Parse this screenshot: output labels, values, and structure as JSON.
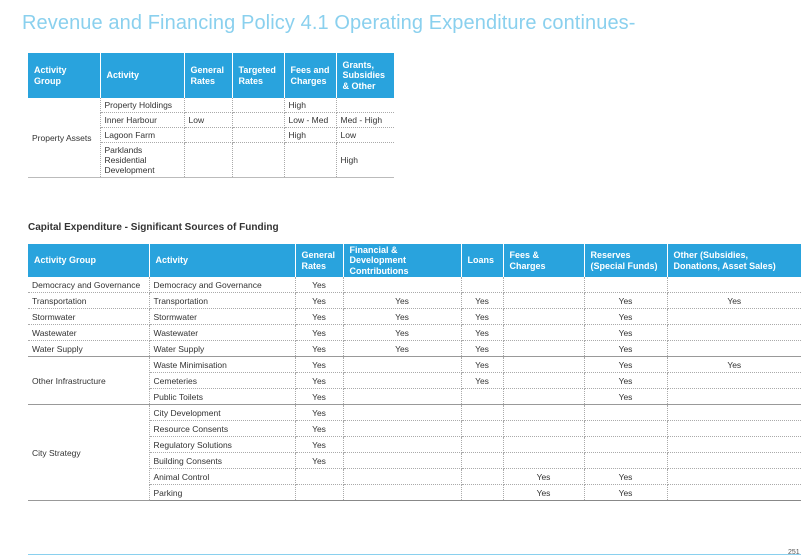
{
  "header": {
    "title": "Revenue and Financing Policy  4.1 Operating Expenditure continues-"
  },
  "operating_table": {
    "headers": [
      "Activity Group",
      "Activity",
      "General Rates",
      "Targeted Rates",
      "Fees and Charges",
      "Grants, Subsidies & Other"
    ],
    "group": "Property Assets",
    "rows": [
      {
        "activity": "Property Holdings",
        "general": "",
        "targeted": "",
        "fees": "High",
        "grants": ""
      },
      {
        "activity": "Inner Harbour",
        "general": "Low",
        "targeted": "",
        "fees": "Low - Med",
        "grants": "Med - High"
      },
      {
        "activity": "Lagoon Farm",
        "general": "",
        "targeted": "",
        "fees": "High",
        "grants": "Low"
      },
      {
        "activity": "Parklands Residential Development",
        "general": "",
        "targeted": "",
        "fees": "",
        "grants": "High"
      }
    ]
  },
  "capital_section": {
    "title": "Capital Expenditure - Significant Sources of Funding"
  },
  "capital_table": {
    "headers": [
      "Activity Group",
      "Activity",
      "General Rates",
      "Financial & Development Contributions",
      "Loans",
      "Fees & Charges",
      "Reserves (Special Funds)",
      "Other (Subsidies, Donations, Asset Sales)"
    ],
    "single_rows": [
      {
        "group": "Democracy and Governance",
        "activity": "Democracy and Governance",
        "cells": [
          "Yes",
          "",
          "",
          "",
          "",
          ""
        ]
      },
      {
        "group": "Transportation",
        "activity": "Transportation",
        "cells": [
          "Yes",
          "Yes",
          "Yes",
          "",
          "Yes",
          "Yes"
        ]
      },
      {
        "group": "Stormwater",
        "activity": "Stormwater",
        "cells": [
          "Yes",
          "Yes",
          "Yes",
          "",
          "Yes",
          ""
        ]
      },
      {
        "group": "Wastewater",
        "activity": "Wastewater",
        "cells": [
          "Yes",
          "Yes",
          "Yes",
          "",
          "Yes",
          ""
        ]
      },
      {
        "group": "Water Supply",
        "activity": "Water Supply",
        "cells": [
          "Yes",
          "Yes",
          "Yes",
          "",
          "Yes",
          ""
        ]
      }
    ],
    "other_infrastructure": {
      "group": "Other Infrastructure",
      "rows": [
        {
          "activity": "Waste Minimisation",
          "cells": [
            "Yes",
            "",
            "Yes",
            "",
            "Yes",
            "Yes"
          ]
        },
        {
          "activity": "Cemeteries",
          "cells": [
            "Yes",
            "",
            "Yes",
            "",
            "Yes",
            ""
          ]
        },
        {
          "activity": "Public Toilets",
          "cells": [
            "Yes",
            "",
            "",
            "",
            "Yes",
            ""
          ]
        }
      ]
    },
    "city_strategy": {
      "group": "City Strategy",
      "rows": [
        {
          "activity": "City Development",
          "cells": [
            "Yes",
            "",
            "",
            "",
            "",
            ""
          ]
        },
        {
          "activity": "Resource Consents",
          "cells": [
            "Yes",
            "",
            "",
            "",
            "",
            ""
          ]
        },
        {
          "activity": "Regulatory Solutions",
          "cells": [
            "Yes",
            "",
            "",
            "",
            "",
            ""
          ]
        },
        {
          "activity": "Building Consents",
          "cells": [
            "Yes",
            "",
            "",
            "",
            "",
            ""
          ]
        },
        {
          "activity": "Animal Control",
          "cells": [
            "",
            "",
            "",
            "Yes",
            "Yes",
            ""
          ]
        },
        {
          "activity": "Parking",
          "cells": [
            "",
            "",
            "",
            "Yes",
            "Yes",
            ""
          ]
        }
      ]
    }
  },
  "footer": {
    "page_number": "251"
  }
}
